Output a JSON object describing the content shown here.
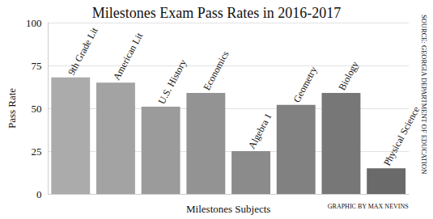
{
  "chart_data": {
    "type": "bar",
    "title": "Milestones Exam Pass Rates in 2016-2017",
    "x_label": "Milestones Subjects",
    "y_label": "Pass Rate",
    "categories": [
      "9th Grade Lit",
      "American Lit",
      "U.S. History",
      "Economics",
      "Algebra 1",
      "Geometry",
      "Biology",
      "Physical Science"
    ],
    "values": [
      68,
      65,
      51,
      59,
      25,
      52,
      59,
      15
    ],
    "colors": [
      "#ababab",
      "#a3a3a3",
      "#9b9b9b",
      "#939393",
      "#8b8b8b",
      "#818181",
      "#777777",
      "#6a6a6a"
    ],
    "ylim": [
      0,
      100
    ],
    "yticks": [
      0,
      25,
      50,
      75,
      100
    ],
    "grid": true,
    "annotations": [
      "GRAPHIC BY MAX NEVINS",
      "SOURCE: GEORGIA DEPARTMENT OF EDUCATION"
    ]
  }
}
